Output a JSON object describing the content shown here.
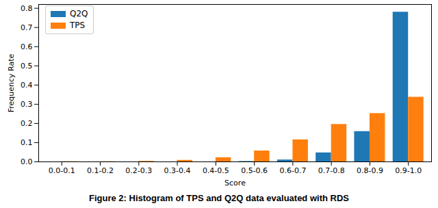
{
  "chart_data": {
    "type": "bar",
    "title": "Figure 2: Histogram of TPS and Q2Q data evaluated with RDS",
    "x_label": "Score",
    "y_label": "Frequency Rate",
    "categories": [
      "0.0-0.1",
      "0.1-0.2",
      "0.2-0.3",
      "0.3-0.4",
      "0.4-0.5",
      "0.5-0.6",
      "0.6-0.7",
      "0.7-0.8",
      "0.8-0.9",
      "0.9-1.0"
    ],
    "series": [
      {
        "name": "Q2Q",
        "color": "#1f77b4",
        "values": [
          0,
          0,
          0,
          0,
          0,
          0.002,
          0.01,
          0.047,
          0.158,
          0.78
        ]
      },
      {
        "name": "TPS",
        "color": "#ff7f0e",
        "values": [
          0.001,
          0.001,
          0.003,
          0.008,
          0.022,
          0.057,
          0.115,
          0.195,
          0.252,
          0.337
        ]
      }
    ],
    "ylim": [
      0,
      0.82
    ],
    "yticks": [
      {
        "value": 0,
        "label": "0.0"
      },
      {
        "value": 0.1,
        "label": "0.1"
      },
      {
        "value": 0.2,
        "label": "0.2"
      },
      {
        "value": 0.3,
        "label": "0.3"
      },
      {
        "value": 0.4,
        "label": "0.4"
      },
      {
        "value": 0.5,
        "label": "0.5"
      },
      {
        "value": 0.6,
        "label": "0.6"
      },
      {
        "value": 0.7,
        "label": "0.7"
      },
      {
        "value": 0.8,
        "label": "0.8"
      }
    ],
    "legend": "upper left"
  }
}
